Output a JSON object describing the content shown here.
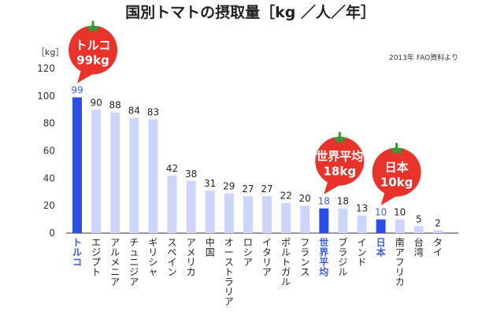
{
  "chart_data": {
    "type": "bar",
    "title": "国別トマトの摂取量［kg ／人／年］",
    "ylabel": "［kg］",
    "source": "2013年 FAO資料より",
    "ylim": [
      0,
      120
    ],
    "yticks": [
      "0",
      "20",
      "40",
      "60",
      "80",
      "100",
      "120"
    ],
    "categories": [
      "トルコ",
      "エジプト",
      "アルメニア",
      "チュニジア",
      "ギリシャ",
      "スペイン",
      "アメリカ",
      "中国",
      "オーストラリア",
      "ロシア",
      "イタリア",
      "ポルトガル",
      "フランス",
      "世界平均",
      "ブラジル",
      "インド",
      "日本",
      "南アフリカ",
      "台湾",
      "タイ"
    ],
    "values": [
      99,
      90,
      88,
      84,
      83,
      42,
      38,
      31,
      29,
      27,
      27,
      22,
      20,
      18,
      18,
      13,
      10,
      10,
      5,
      2
    ],
    "highlighted": [
      "トルコ",
      "世界平均",
      "日本"
    ],
    "colors": {
      "bar": "#cdd5fa",
      "highlight": "#2e4fe6",
      "callout": "#e8332a",
      "leaf": "#2f9e3a"
    },
    "callouts": [
      {
        "category": "トルコ",
        "line1": "トルコ",
        "line2": "99kg"
      },
      {
        "category": "世界平均",
        "line1": "世界平均",
        "line2": "18kg"
      },
      {
        "category": "日本",
        "line1": "日本",
        "line2": "10kg"
      }
    ]
  }
}
